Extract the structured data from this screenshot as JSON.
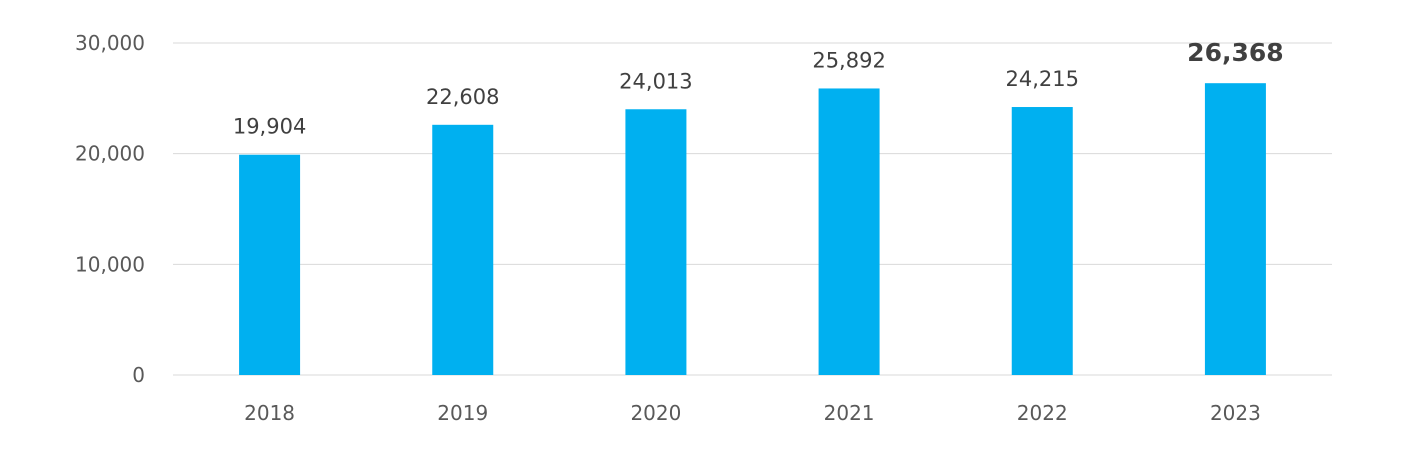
{
  "chart_data": {
    "type": "bar",
    "title": "",
    "xlabel": "",
    "ylabel": "",
    "categories": [
      "2018",
      "2019",
      "2020",
      "2021",
      "2022",
      "2023"
    ],
    "values": [
      19904,
      22608,
      24013,
      25892,
      24215,
      26368
    ],
    "data_labels": [
      "19,904",
      "22,608",
      "24,013",
      "25,892",
      "24,215",
      "26,368"
    ],
    "highlight_index": 5,
    "ylim": [
      0,
      30000
    ],
    "y_ticks": [
      0,
      10000,
      20000,
      30000
    ],
    "y_tick_labels": [
      "0",
      "10,000",
      "20,000",
      "30,000"
    ],
    "grid": true,
    "legend": "none",
    "colors": {
      "bar": "#00B0F0",
      "highlight_label": "#E3161B",
      "label": "#404040",
      "tick": "#595959",
      "grid": "#D9D9D9"
    }
  }
}
